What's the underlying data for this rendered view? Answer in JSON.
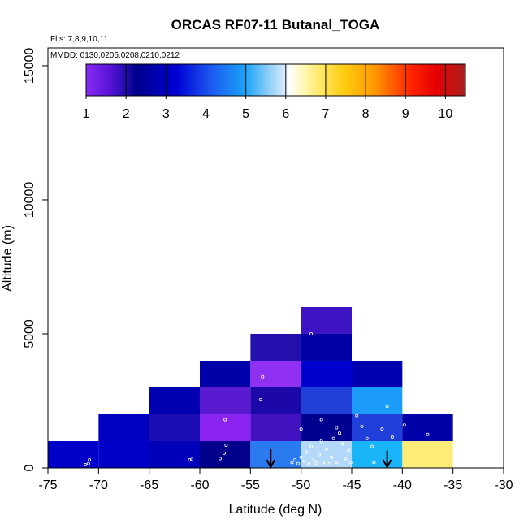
{
  "chart_data": {
    "type": "heatmap",
    "title": "ORCAS RF07-11 Butanal_TOGA",
    "xlabel": "Latitude (deg N)",
    "ylabel": "Altitude (m)",
    "xlim": [
      -75,
      -30
    ],
    "ylim": [
      0,
      15000
    ],
    "x_ticks": [
      -75,
      -70,
      -65,
      -60,
      -55,
      -50,
      -45,
      -40,
      -35,
      -30
    ],
    "x_tick_labels": [
      "-75",
      "-70",
      "-65",
      "-60",
      "-55",
      "-50",
      "-45",
      "-40",
      "-35",
      "-30"
    ],
    "y_ticks": [
      0,
      5000,
      10000,
      15000
    ],
    "y_tick_labels": [
      "0",
      "5000",
      "10000",
      "15000"
    ],
    "flights_note": "Flts: 7,8,9,10,11",
    "dates_note": "MMDD: 0130,0205,0208,0210,0212",
    "colorbar": {
      "min": 1,
      "max": 10.5,
      "ticks": [
        1,
        2,
        3,
        4,
        5,
        6,
        7,
        8,
        9,
        10
      ],
      "tick_labels": [
        "1",
        "2",
        "3",
        "4",
        "5",
        "6",
        "7",
        "8",
        "9",
        "10"
      ]
    },
    "bin_width_deg": 5,
    "bin_height_m": 1000,
    "cells": [
      {
        "lat": -75,
        "alt": 0,
        "color": "#0000c8"
      },
      {
        "lat": -70,
        "alt": 0,
        "color": "#0000c8"
      },
      {
        "lat": -70,
        "alt": 1000,
        "color": "#0000c0"
      },
      {
        "lat": -65,
        "alt": 0,
        "color": "#0000b8"
      },
      {
        "lat": -65,
        "alt": 1000,
        "color": "#1c0cb4"
      },
      {
        "lat": -65,
        "alt": 2000,
        "color": "#0000b0"
      },
      {
        "lat": -60,
        "alt": 0,
        "color": "#00008a"
      },
      {
        "lat": -60,
        "alt": 1000,
        "color": "#8a22f0"
      },
      {
        "lat": -60,
        "alt": 2000,
        "color": "#5a1ad0"
      },
      {
        "lat": -60,
        "alt": 3000,
        "color": "#0000a8"
      },
      {
        "lat": -55,
        "alt": 0,
        "color": "#2a7af0"
      },
      {
        "lat": -55,
        "alt": 1000,
        "color": "#4212c0"
      },
      {
        "lat": -55,
        "alt": 2000,
        "color": "#1c08a8"
      },
      {
        "lat": -55,
        "alt": 3000,
        "color": "#9030f0"
      },
      {
        "lat": -55,
        "alt": 4000,
        "color": "#2410ac"
      },
      {
        "lat": -50,
        "alt": 0,
        "color": "#b4d8fa"
      },
      {
        "lat": -50,
        "alt": 1000,
        "color": "#000090"
      },
      {
        "lat": -50,
        "alt": 2000,
        "color": "#2040d8"
      },
      {
        "lat": -50,
        "alt": 3000,
        "color": "#0000cc"
      },
      {
        "lat": -50,
        "alt": 4000,
        "color": "#0000a4"
      },
      {
        "lat": -50,
        "alt": 5000,
        "color": "#3c14c4"
      },
      {
        "lat": -45,
        "alt": 0,
        "color": "#1ab4f8"
      },
      {
        "lat": -45,
        "alt": 1000,
        "color": "#203ed8"
      },
      {
        "lat": -45,
        "alt": 2000,
        "color": "#1a9cf8"
      },
      {
        "lat": -45,
        "alt": 3000,
        "color": "#0000b0"
      },
      {
        "lat": -40,
        "alt": 0,
        "color": "#ffec78"
      },
      {
        "lat": -40,
        "alt": 1000,
        "color": "#0000a8"
      }
    ],
    "samples": [
      {
        "lat": -71.3,
        "alt": 120
      },
      {
        "lat": -71.0,
        "alt": 160
      },
      {
        "lat": -70.9,
        "alt": 300
      },
      {
        "lat": -61.0,
        "alt": 300
      },
      {
        "lat": -60.8,
        "alt": 320
      },
      {
        "lat": -58.0,
        "alt": 350
      },
      {
        "lat": -57.6,
        "alt": 550
      },
      {
        "lat": -57.4,
        "alt": 850
      },
      {
        "lat": -57.5,
        "alt": 1800
      },
      {
        "lat": -54.0,
        "alt": 2550
      },
      {
        "lat": -53.8,
        "alt": 3400
      },
      {
        "lat": -50.9,
        "alt": 200
      },
      {
        "lat": -50.6,
        "alt": 300
      },
      {
        "lat": -50.3,
        "alt": 160
      },
      {
        "lat": -50.0,
        "alt": 400
      },
      {
        "lat": -49.7,
        "alt": 250
      },
      {
        "lat": -49.5,
        "alt": 600
      },
      {
        "lat": -49.2,
        "alt": 150
      },
      {
        "lat": -49.0,
        "alt": 800
      },
      {
        "lat": -48.8,
        "alt": 300
      },
      {
        "lat": -48.5,
        "alt": 180
      },
      {
        "lat": -48.2,
        "alt": 500
      },
      {
        "lat": -48.0,
        "alt": 1000
      },
      {
        "lat": -47.8,
        "alt": 200
      },
      {
        "lat": -47.5,
        "alt": 700
      },
      {
        "lat": -47.2,
        "alt": 150
      },
      {
        "lat": -47.0,
        "alt": 400
      },
      {
        "lat": -46.8,
        "alt": 1100
      },
      {
        "lat": -46.5,
        "alt": 200
      },
      {
        "lat": -46.2,
        "alt": 1300
      },
      {
        "lat": -45.9,
        "alt": 900
      },
      {
        "lat": -45.6,
        "alt": 350
      },
      {
        "lat": -45.3,
        "alt": 650
      },
      {
        "lat": -45.1,
        "alt": 200
      },
      {
        "lat": -50.0,
        "alt": 1450
      },
      {
        "lat": -48.0,
        "alt": 1800
      },
      {
        "lat": -46.5,
        "alt": 1500
      },
      {
        "lat": -49.0,
        "alt": 5000
      },
      {
        "lat": -44.5,
        "alt": 1950
      },
      {
        "lat": -44.0,
        "alt": 1550
      },
      {
        "lat": -43.5,
        "alt": 1100
      },
      {
        "lat": -43.0,
        "alt": 800
      },
      {
        "lat": -42.8,
        "alt": 200
      },
      {
        "lat": -42.0,
        "alt": 1450
      },
      {
        "lat": -41.5,
        "alt": 2300
      },
      {
        "lat": -41.0,
        "alt": 1150
      },
      {
        "lat": -39.8,
        "alt": 1600
      },
      {
        "lat": -37.5,
        "alt": 1250
      }
    ],
    "markers": [
      {
        "type": "down-arrow",
        "lat": -53,
        "alt_top": 700
      },
      {
        "type": "down-arrow",
        "lat": -41.5,
        "alt_top": 650
      }
    ]
  }
}
